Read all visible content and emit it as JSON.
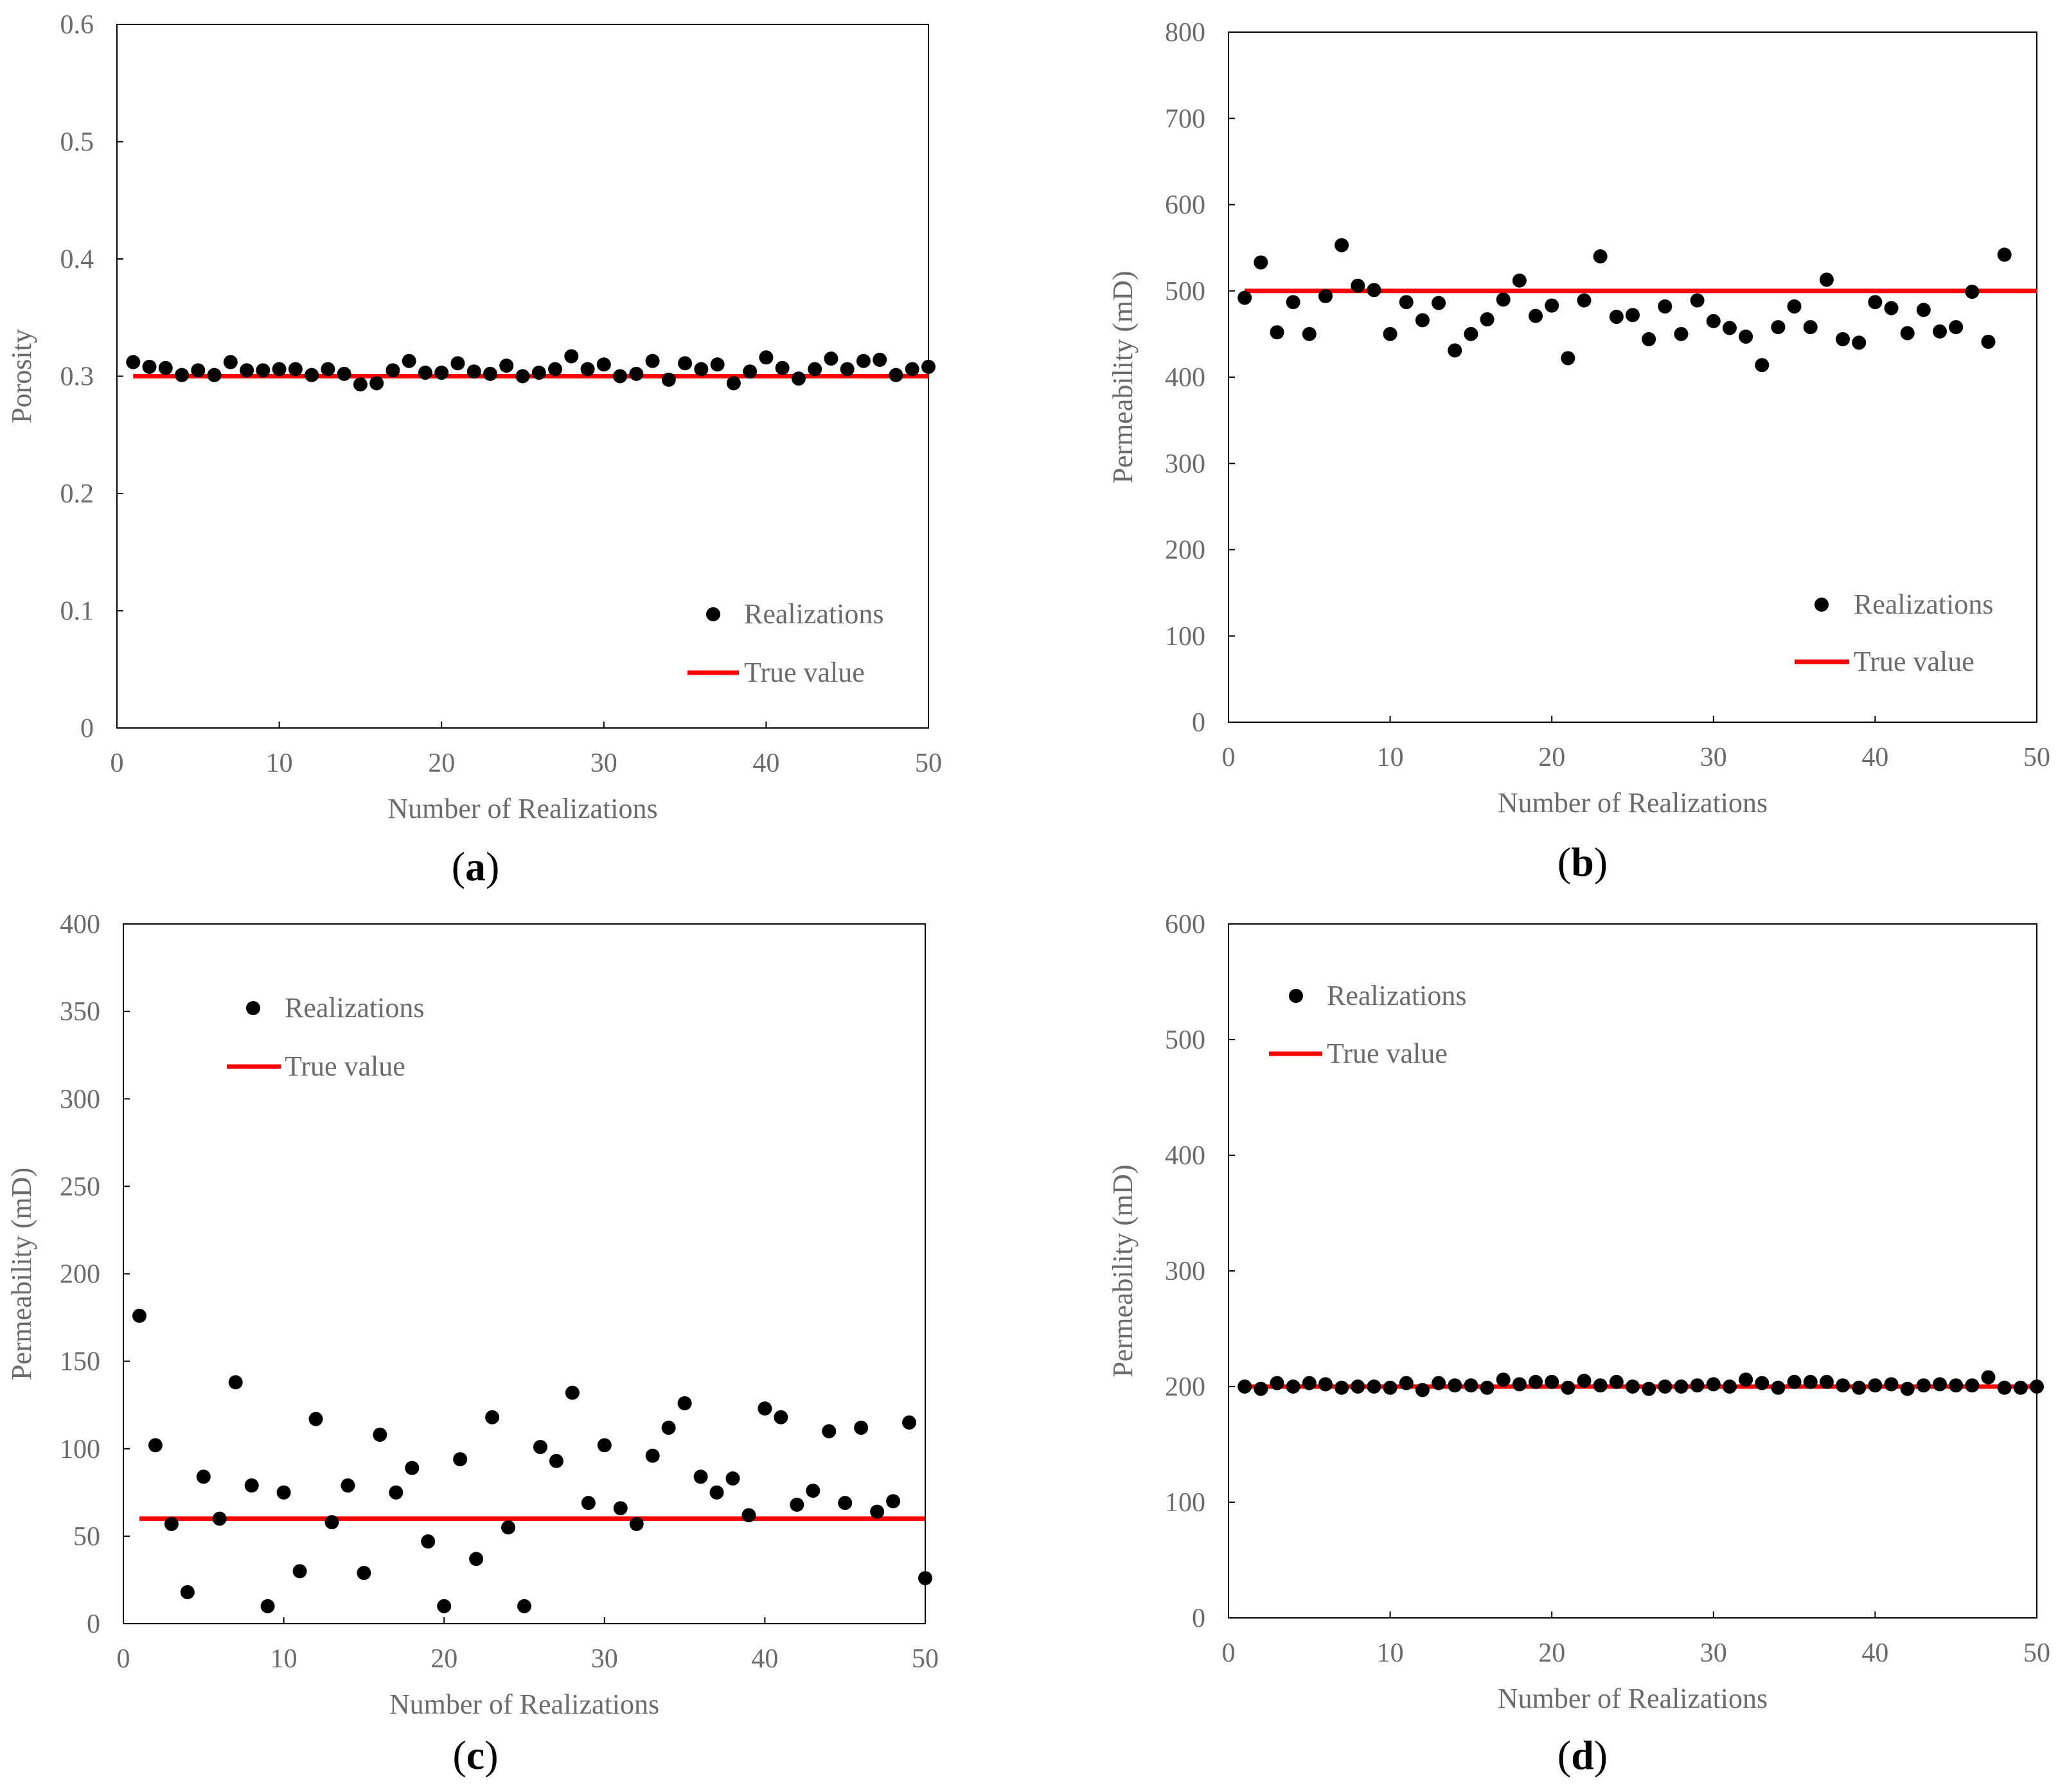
{
  "colors": {
    "marker": "#000000",
    "true_line": "#ff0000",
    "axis": "#000000",
    "text": "#6b6b6b"
  },
  "chart_data": [
    {
      "type": "scatter",
      "panel_label": "(a)",
      "xlabel": "Number of Realizations",
      "ylabel": "Porosity",
      "xlim": [
        0,
        50
      ],
      "ylim": [
        0,
        0.6
      ],
      "xticks": [
        "0",
        "10",
        "20",
        "30",
        "40",
        "50"
      ],
      "yticks": [
        "0",
        "0.1",
        "0.2",
        "0.3",
        "0.4",
        "0.5",
        "0.6"
      ],
      "legend": {
        "position": "bottom-right",
        "realizations": "Realizations",
        "true_value": "True value"
      },
      "true_value": 0.3,
      "x": [
        1,
        2,
        3,
        4,
        5,
        6,
        7,
        8,
        9,
        10,
        11,
        12,
        13,
        14,
        15,
        16,
        17,
        18,
        19,
        20,
        21,
        22,
        23,
        24,
        25,
        26,
        27,
        28,
        29,
        30,
        31,
        32,
        33,
        34,
        35,
        36,
        37,
        38,
        39,
        40,
        41,
        42,
        43,
        44,
        45,
        46,
        47,
        48,
        49,
        50
      ],
      "y": [
        0.312,
        0.308,
        0.307,
        0.301,
        0.305,
        0.301,
        0.312,
        0.305,
        0.305,
        0.306,
        0.306,
        0.301,
        0.306,
        0.302,
        0.293,
        0.294,
        0.305,
        0.313,
        0.303,
        0.303,
        0.311,
        0.304,
        0.302,
        0.309,
        0.3,
        0.303,
        0.306,
        0.317,
        0.306,
        0.31,
        0.3,
        0.302,
        0.313,
        0.297,
        0.311,
        0.306,
        0.31,
        0.294,
        0.304,
        0.316,
        0.307,
        0.298,
        0.306,
        0.315,
        0.306,
        0.313,
        0.314,
        0.301,
        0.306,
        0.308
      ]
    },
    {
      "type": "scatter",
      "panel_label": "(b)",
      "xlabel": "Number of Realizations",
      "ylabel": "Permeability (mD)",
      "xlim": [
        0,
        50
      ],
      "ylim": [
        0,
        800
      ],
      "xticks": [
        "0",
        "10",
        "20",
        "30",
        "40",
        "50"
      ],
      "yticks": [
        "0",
        "100",
        "200",
        "300",
        "400",
        "500",
        "600",
        "700",
        "800"
      ],
      "legend": {
        "position": "bottom-right",
        "realizations": "Realizations",
        "true_value": "True value"
      },
      "true_value": 500,
      "x": [
        1,
        2,
        3,
        4,
        5,
        6,
        7,
        8,
        9,
        10,
        11,
        12,
        13,
        14,
        15,
        16,
        17,
        18,
        19,
        20,
        21,
        22,
        23,
        24,
        25,
        26,
        27,
        28,
        29,
        30,
        31,
        32,
        33,
        34,
        35,
        36,
        37,
        38,
        39,
        40,
        41,
        42,
        43,
        44,
        45,
        46,
        47,
        48
      ],
      "y": [
        492,
        533,
        452,
        487,
        450,
        494,
        553,
        506,
        501,
        450,
        487,
        466,
        486,
        431,
        450,
        467,
        490,
        512,
        471,
        483,
        422,
        489,
        540,
        470,
        472,
        444,
        482,
        450,
        489,
        465,
        457,
        447,
        414,
        458,
        482,
        458,
        513,
        444,
        440,
        487,
        480,
        451,
        478,
        453,
        458,
        499,
        441,
        542
      ]
    },
    {
      "type": "scatter",
      "panel_label": "(c)",
      "xlabel": "Number of Realizations",
      "ylabel": "Permeability (mD)",
      "xlim": [
        0,
        50
      ],
      "ylim": [
        0,
        400
      ],
      "xticks": [
        "0",
        "10",
        "20",
        "30",
        "40",
        "50"
      ],
      "yticks": [
        "0",
        "50",
        "100",
        "150",
        "200",
        "250",
        "300",
        "350",
        "400"
      ],
      "legend": {
        "position": "top-left",
        "realizations": "Realizations",
        "true_value": "True value"
      },
      "true_value": 60,
      "x": [
        1,
        2,
        3,
        4,
        5,
        6,
        7,
        8,
        9,
        10,
        11,
        12,
        13,
        14,
        15,
        16,
        17,
        18,
        19,
        20,
        21,
        22,
        23,
        24,
        25,
        26,
        27,
        28,
        29,
        30,
        31,
        32,
        33,
        34,
        35,
        36,
        37,
        38,
        39,
        40,
        41,
        42,
        43,
        44,
        45,
        46,
        47,
        48,
        49,
        50
      ],
      "y": [
        176,
        102,
        57,
        18,
        84,
        60,
        138,
        79,
        10,
        75,
        30,
        117,
        58,
        79,
        29,
        108,
        75,
        89,
        47,
        10,
        94,
        37,
        118,
        55,
        10,
        101,
        93,
        132,
        69,
        102,
        66,
        57,
        96,
        112,
        126,
        84,
        75,
        83,
        62,
        123,
        118,
        68,
        76,
        110,
        69,
        112,
        64,
        70,
        115,
        26
      ]
    },
    {
      "type": "scatter",
      "panel_label": "(d)",
      "xlabel": "Number of Realizations",
      "ylabel": "Permeability (mD)",
      "xlim": [
        0,
        50
      ],
      "ylim": [
        0,
        600
      ],
      "xticks": [
        "0",
        "10",
        "20",
        "30",
        "40",
        "50"
      ],
      "yticks": [
        "0",
        "100",
        "200",
        "300",
        "400",
        "500",
        "600"
      ],
      "legend": {
        "position": "top-left",
        "realizations": "Realizations",
        "true_value": "True value"
      },
      "true_value": 200,
      "x": [
        1,
        2,
        3,
        4,
        5,
        6,
        7,
        8,
        9,
        10,
        11,
        12,
        13,
        14,
        15,
        16,
        17,
        18,
        19,
        20,
        21,
        22,
        23,
        24,
        25,
        26,
        27,
        28,
        29,
        30,
        31,
        32,
        33,
        34,
        35,
        36,
        37,
        38,
        39,
        40,
        41,
        42,
        43,
        44,
        45,
        46,
        47,
        48,
        49,
        50
      ],
      "y": [
        200,
        198,
        203,
        200,
        203,
        202,
        199,
        200,
        200,
        199,
        203,
        197,
        203,
        201,
        201,
        199,
        206,
        202,
        204,
        204,
        199,
        205,
        201,
        204,
        200,
        198,
        200,
        200,
        201,
        202,
        200,
        206,
        203,
        199,
        204,
        204,
        204,
        201,
        199,
        201,
        202,
        198,
        201,
        202,
        201,
        201,
        208,
        199,
        199,
        200
      ]
    }
  ]
}
